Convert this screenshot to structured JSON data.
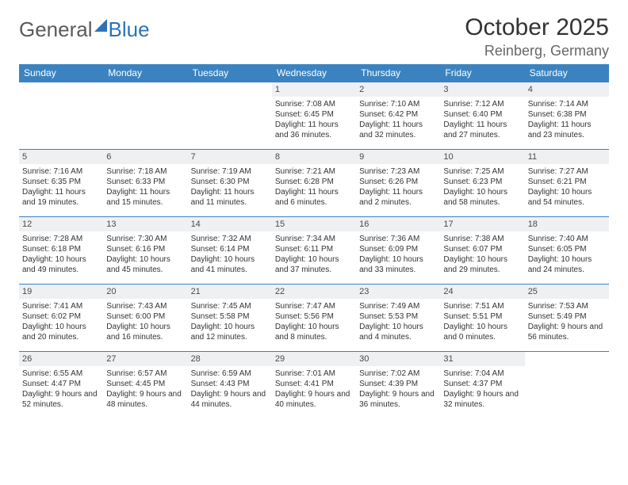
{
  "logo": {
    "part1": "General",
    "part2": "Blue"
  },
  "title": "October 2025",
  "location": "Reinberg, Germany",
  "dayHeaders": [
    "Sunday",
    "Monday",
    "Tuesday",
    "Wednesday",
    "Thursday",
    "Friday",
    "Saturday"
  ],
  "colors": {
    "header_bg": "#3b83c0",
    "header_text": "#ffffff",
    "daynum_bg": "#eef0f2",
    "rule": "#3b83c0",
    "logo_blue": "#2d72b8",
    "logo_gray": "#5a5a5a",
    "body_text": "#333333"
  },
  "weeks": [
    [
      {
        "n": "",
        "sr": "",
        "ss": "",
        "dl": ""
      },
      {
        "n": "",
        "sr": "",
        "ss": "",
        "dl": ""
      },
      {
        "n": "",
        "sr": "",
        "ss": "",
        "dl": ""
      },
      {
        "n": "1",
        "sr": "Sunrise: 7:08 AM",
        "ss": "Sunset: 6:45 PM",
        "dl": "Daylight: 11 hours and 36 minutes."
      },
      {
        "n": "2",
        "sr": "Sunrise: 7:10 AM",
        "ss": "Sunset: 6:42 PM",
        "dl": "Daylight: 11 hours and 32 minutes."
      },
      {
        "n": "3",
        "sr": "Sunrise: 7:12 AM",
        "ss": "Sunset: 6:40 PM",
        "dl": "Daylight: 11 hours and 27 minutes."
      },
      {
        "n": "4",
        "sr": "Sunrise: 7:14 AM",
        "ss": "Sunset: 6:38 PM",
        "dl": "Daylight: 11 hours and 23 minutes."
      }
    ],
    [
      {
        "n": "5",
        "sr": "Sunrise: 7:16 AM",
        "ss": "Sunset: 6:35 PM",
        "dl": "Daylight: 11 hours and 19 minutes."
      },
      {
        "n": "6",
        "sr": "Sunrise: 7:18 AM",
        "ss": "Sunset: 6:33 PM",
        "dl": "Daylight: 11 hours and 15 minutes."
      },
      {
        "n": "7",
        "sr": "Sunrise: 7:19 AM",
        "ss": "Sunset: 6:30 PM",
        "dl": "Daylight: 11 hours and 11 minutes."
      },
      {
        "n": "8",
        "sr": "Sunrise: 7:21 AM",
        "ss": "Sunset: 6:28 PM",
        "dl": "Daylight: 11 hours and 6 minutes."
      },
      {
        "n": "9",
        "sr": "Sunrise: 7:23 AM",
        "ss": "Sunset: 6:26 PM",
        "dl": "Daylight: 11 hours and 2 minutes."
      },
      {
        "n": "10",
        "sr": "Sunrise: 7:25 AM",
        "ss": "Sunset: 6:23 PM",
        "dl": "Daylight: 10 hours and 58 minutes."
      },
      {
        "n": "11",
        "sr": "Sunrise: 7:27 AM",
        "ss": "Sunset: 6:21 PM",
        "dl": "Daylight: 10 hours and 54 minutes."
      }
    ],
    [
      {
        "n": "12",
        "sr": "Sunrise: 7:28 AM",
        "ss": "Sunset: 6:18 PM",
        "dl": "Daylight: 10 hours and 49 minutes."
      },
      {
        "n": "13",
        "sr": "Sunrise: 7:30 AM",
        "ss": "Sunset: 6:16 PM",
        "dl": "Daylight: 10 hours and 45 minutes."
      },
      {
        "n": "14",
        "sr": "Sunrise: 7:32 AM",
        "ss": "Sunset: 6:14 PM",
        "dl": "Daylight: 10 hours and 41 minutes."
      },
      {
        "n": "15",
        "sr": "Sunrise: 7:34 AM",
        "ss": "Sunset: 6:11 PM",
        "dl": "Daylight: 10 hours and 37 minutes."
      },
      {
        "n": "16",
        "sr": "Sunrise: 7:36 AM",
        "ss": "Sunset: 6:09 PM",
        "dl": "Daylight: 10 hours and 33 minutes."
      },
      {
        "n": "17",
        "sr": "Sunrise: 7:38 AM",
        "ss": "Sunset: 6:07 PM",
        "dl": "Daylight: 10 hours and 29 minutes."
      },
      {
        "n": "18",
        "sr": "Sunrise: 7:40 AM",
        "ss": "Sunset: 6:05 PM",
        "dl": "Daylight: 10 hours and 24 minutes."
      }
    ],
    [
      {
        "n": "19",
        "sr": "Sunrise: 7:41 AM",
        "ss": "Sunset: 6:02 PM",
        "dl": "Daylight: 10 hours and 20 minutes."
      },
      {
        "n": "20",
        "sr": "Sunrise: 7:43 AM",
        "ss": "Sunset: 6:00 PM",
        "dl": "Daylight: 10 hours and 16 minutes."
      },
      {
        "n": "21",
        "sr": "Sunrise: 7:45 AM",
        "ss": "Sunset: 5:58 PM",
        "dl": "Daylight: 10 hours and 12 minutes."
      },
      {
        "n": "22",
        "sr": "Sunrise: 7:47 AM",
        "ss": "Sunset: 5:56 PM",
        "dl": "Daylight: 10 hours and 8 minutes."
      },
      {
        "n": "23",
        "sr": "Sunrise: 7:49 AM",
        "ss": "Sunset: 5:53 PM",
        "dl": "Daylight: 10 hours and 4 minutes."
      },
      {
        "n": "24",
        "sr": "Sunrise: 7:51 AM",
        "ss": "Sunset: 5:51 PM",
        "dl": "Daylight: 10 hours and 0 minutes."
      },
      {
        "n": "25",
        "sr": "Sunrise: 7:53 AM",
        "ss": "Sunset: 5:49 PM",
        "dl": "Daylight: 9 hours and 56 minutes."
      }
    ],
    [
      {
        "n": "26",
        "sr": "Sunrise: 6:55 AM",
        "ss": "Sunset: 4:47 PM",
        "dl": "Daylight: 9 hours and 52 minutes."
      },
      {
        "n": "27",
        "sr": "Sunrise: 6:57 AM",
        "ss": "Sunset: 4:45 PM",
        "dl": "Daylight: 9 hours and 48 minutes."
      },
      {
        "n": "28",
        "sr": "Sunrise: 6:59 AM",
        "ss": "Sunset: 4:43 PM",
        "dl": "Daylight: 9 hours and 44 minutes."
      },
      {
        "n": "29",
        "sr": "Sunrise: 7:01 AM",
        "ss": "Sunset: 4:41 PM",
        "dl": "Daylight: 9 hours and 40 minutes."
      },
      {
        "n": "30",
        "sr": "Sunrise: 7:02 AM",
        "ss": "Sunset: 4:39 PM",
        "dl": "Daylight: 9 hours and 36 minutes."
      },
      {
        "n": "31",
        "sr": "Sunrise: 7:04 AM",
        "ss": "Sunset: 4:37 PM",
        "dl": "Daylight: 9 hours and 32 minutes."
      },
      {
        "n": "",
        "sr": "",
        "ss": "",
        "dl": ""
      }
    ]
  ]
}
